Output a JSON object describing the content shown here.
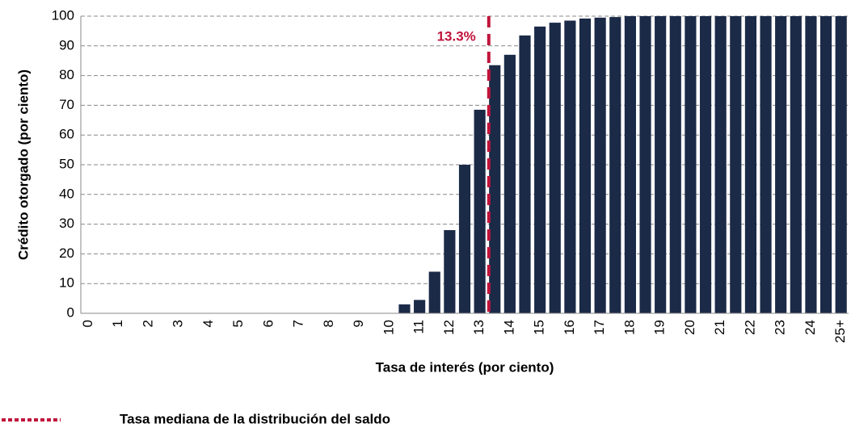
{
  "chart_data": {
    "type": "bar",
    "y_label": "Crédito otorgado (por ciento)",
    "x_label": "Tasa de interés (por ciento)",
    "categories": [
      "0",
      null,
      "1",
      null,
      "2",
      null,
      "3",
      null,
      "4",
      null,
      "5",
      null,
      "6",
      null,
      "7",
      null,
      "8",
      null,
      "9",
      null,
      "10",
      null,
      "11",
      null,
      "12",
      null,
      "13",
      null,
      "14",
      null,
      "15",
      null,
      "16",
      null,
      "17",
      null,
      "18",
      null,
      "19",
      null,
      "20",
      null,
      "21",
      null,
      "22",
      null,
      "23",
      null,
      "24",
      null,
      "25+"
    ],
    "values": [
      0,
      0,
      0,
      0,
      0,
      0,
      0,
      0,
      0,
      0,
      0,
      0,
      0,
      0,
      0,
      0,
      0,
      0,
      0,
      0,
      0,
      3,
      4.5,
      14,
      28,
      50,
      68.5,
      83.5,
      87,
      93.5,
      96.5,
      97.8,
      98.5,
      99.2,
      99.5,
      99.7,
      100,
      100,
      100,
      100,
      100,
      100,
      100,
      100,
      100,
      100,
      100,
      100,
      100,
      100,
      100
    ],
    "color": "#1b2a47",
    "ylim": [
      0,
      100
    ],
    "yticks": [
      0,
      10,
      20,
      30,
      40,
      50,
      60,
      70,
      80,
      90,
      100
    ],
    "grid": true,
    "reference_line": {
      "value": 13.3,
      "label": "13.3%",
      "color": "#c0143c",
      "name": "Tasa mediana de la distribución del saldo"
    }
  }
}
